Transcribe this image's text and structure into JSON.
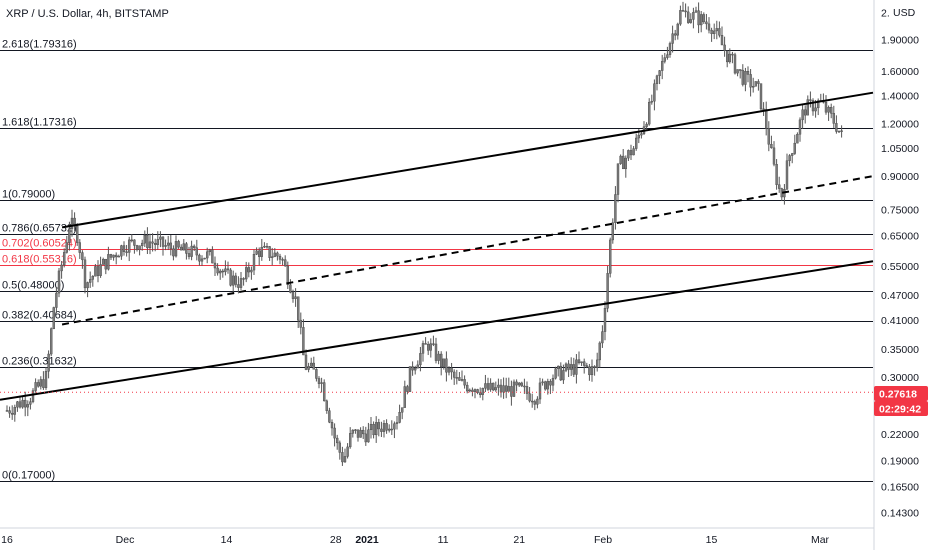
{
  "header": {
    "title": "XRP / U.S. Dollar, 4h, BITSTAMP",
    "currency": "USD"
  },
  "price_badge": {
    "price": "0.27618",
    "countdown": "02:29:42",
    "color": "#f23645"
  },
  "chart_data": {
    "type": "candlestick",
    "symbol": "XRP / U.S. Dollar, 4h, BITSTAMP",
    "x_axis_ticks": [
      "16",
      "Dec",
      "14",
      "28",
      "2021",
      "11",
      "21",
      "Feb",
      "15",
      "Mar"
    ],
    "y_axis_ticks": [
      {
        "label": "2.",
        "value": 2.2
      },
      {
        "label": "1.90000",
        "value": 1.9
      },
      {
        "label": "1.60000",
        "value": 1.6
      },
      {
        "label": "1.40000",
        "value": 1.4
      },
      {
        "label": "1.20000",
        "value": 1.2
      },
      {
        "label": "1.05000",
        "value": 1.05
      },
      {
        "label": "0.90000",
        "value": 0.9
      },
      {
        "label": "0.75000",
        "value": 0.75
      },
      {
        "label": "0.65000",
        "value": 0.65
      },
      {
        "label": "0.55000",
        "value": 0.55
      },
      {
        "label": "0.47000",
        "value": 0.47
      },
      {
        "label": "0.41000",
        "value": 0.41
      },
      {
        "label": "0.35000",
        "value": 0.35
      },
      {
        "label": "0.30000",
        "value": 0.3
      },
      {
        "label": "0.22000",
        "value": 0.22
      },
      {
        "label": "0.19000",
        "value": 0.19
      },
      {
        "label": "0.16500",
        "value": 0.165
      },
      {
        "label": "0.14300",
        "value": 0.143
      }
    ],
    "y_scale": "log",
    "ylim": [
      0.13,
      2.25
    ],
    "fib_levels": [
      {
        "label": "2.618(1.79316)",
        "value": 1.79316,
        "color": "#131722"
      },
      {
        "label": "1.618(1.17316)",
        "value": 1.17316,
        "color": "#131722"
      },
      {
        "label": "1(0.79000)",
        "value": 0.79,
        "color": "#131722"
      },
      {
        "label": "0.786(0.65732)",
        "value": 0.65732,
        "color": "#131722"
      },
      {
        "label": "0.702(0.60524)",
        "value": 0.60524,
        "color": "#f23645"
      },
      {
        "label": "0.618(0.55316)",
        "value": 0.55316,
        "color": "#f23645"
      },
      {
        "label": "0.5(0.48000)",
        "value": 0.48,
        "color": "#131722"
      },
      {
        "label": "0.382(0.40684)",
        "value": 0.40684,
        "color": "#131722"
      },
      {
        "label": "0.236(0.31632)",
        "value": 0.31632,
        "color": "#131722"
      },
      {
        "label": "0(0.17000)",
        "value": 0.17,
        "color": "#131722"
      }
    ],
    "current_price": 0.27618,
    "price_path": [
      [
        "Nov 16",
        0.25
      ],
      [
        "Nov 19",
        0.27
      ],
      [
        "Nov 21",
        0.3
      ],
      [
        "Nov 22",
        0.45
      ],
      [
        "Nov 24",
        0.7
      ],
      [
        "Nov 25",
        0.65
      ],
      [
        "Nov 26",
        0.5
      ],
      [
        "Nov 28",
        0.55
      ],
      [
        "Dec 1",
        0.62
      ],
      [
        "Dec 4",
        0.63
      ],
      [
        "Dec 8",
        0.6
      ],
      [
        "Dec 12",
        0.58
      ],
      [
        "Dec 14",
        0.52
      ],
      [
        "Dec 16",
        0.5
      ],
      [
        "Dec 18",
        0.6
      ],
      [
        "Dec 21",
        0.58
      ],
      [
        "Dec 23",
        0.45
      ],
      [
        "Dec 24",
        0.32
      ],
      [
        "Dec 26",
        0.3
      ],
      [
        "Dec 28",
        0.21
      ],
      [
        "Dec 29",
        0.19
      ],
      [
        "Dec 30",
        0.22
      ],
      [
        "Jan 1",
        0.22
      ],
      [
        "Jan 3",
        0.23
      ],
      [
        "Jan 5",
        0.24
      ],
      [
        "Jan 7",
        0.32
      ],
      [
        "Jan 9",
        0.36
      ],
      [
        "Jan 11",
        0.32
      ],
      [
        "Jan 13",
        0.29
      ],
      [
        "Jan 17",
        0.28
      ],
      [
        "Jan 21",
        0.28
      ],
      [
        "Jan 23",
        0.27
      ],
      [
        "Jan 25",
        0.3
      ],
      [
        "Jan 27",
        0.31
      ],
      [
        "Jan 29",
        0.32
      ],
      [
        "Jan 31",
        0.31
      ],
      [
        "Feb 1",
        0.4
      ],
      [
        "Feb 2",
        0.65
      ],
      [
        "Feb 3",
        0.95
      ],
      [
        "Feb 5",
        1.05
      ],
      [
        "Feb 7",
        1.3
      ],
      [
        "Feb 9",
        1.75
      ],
      [
        "Feb 11",
        2.2
      ],
      [
        "Feb 13",
        2.15
      ],
      [
        "Feb 15",
        2.05
      ],
      [
        "Feb 17",
        1.75
      ],
      [
        "Feb 19",
        1.55
      ],
      [
        "Feb 21",
        1.45
      ],
      [
        "Feb 22",
        1.2
      ],
      [
        "Feb 23",
        0.95
      ],
      [
        "Feb 24",
        0.8
      ],
      [
        "Feb 25",
        1.0
      ],
      [
        "Feb 27",
        1.3
      ],
      [
        "Mar 1",
        1.35
      ],
      [
        "Mar 3",
        1.2
      ],
      [
        "Mar 4",
        1.1
      ]
    ],
    "trend_lines": [
      {
        "style": "solid",
        "from": [
          "Nov 23",
          0.68
        ],
        "to": [
          "right",
          1.42
        ]
      },
      {
        "style": "dashed",
        "from": [
          "Nov 23",
          0.4
        ],
        "to": [
          "right",
          0.9
        ]
      },
      {
        "style": "solid",
        "from": [
          "left",
          0.265
        ],
        "to": [
          "right",
          0.565
        ]
      }
    ]
  }
}
